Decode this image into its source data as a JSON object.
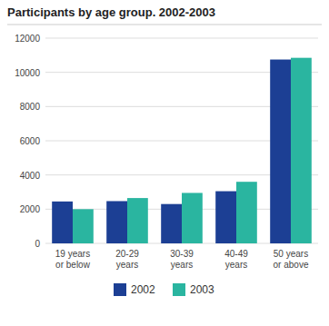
{
  "chart_data": {
    "type": "bar",
    "title": "Participants by age group. 2002-2003",
    "categories": [
      "19 years\nor below",
      "20-29\nyears",
      "30-39\nyears",
      "40-49\nyears",
      "50 years\nor above"
    ],
    "series": [
      {
        "name": "2002",
        "color": "#1c3f94",
        "values": [
          2450,
          2470,
          2300,
          3050,
          10750
        ]
      },
      {
        "name": "2003",
        "color": "#2ab5a0",
        "values": [
          2000,
          2650,
          2950,
          3600,
          10850
        ]
      }
    ],
    "ylim": [
      0,
      12000
    ],
    "yticks": [
      0,
      2000,
      4000,
      6000,
      8000,
      10000,
      12000
    ],
    "grid": true,
    "legend": "bottom"
  }
}
